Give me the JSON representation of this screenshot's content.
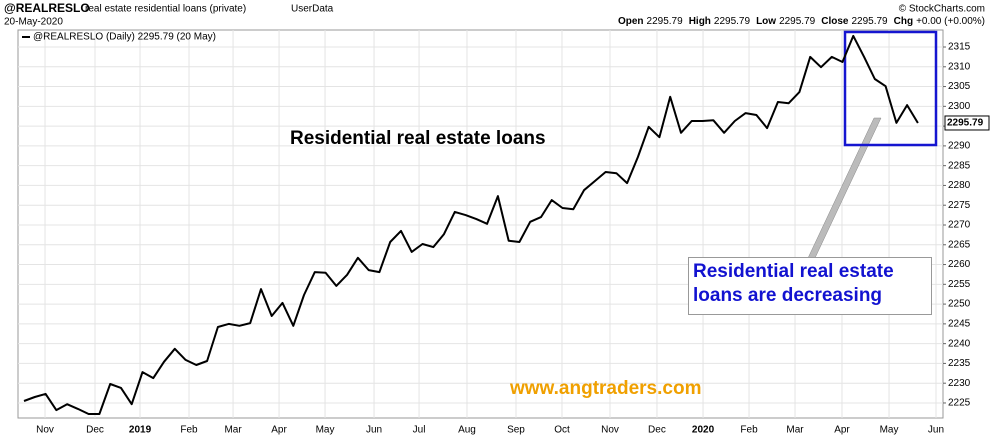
{
  "chart_data": {
    "type": "line",
    "symbol": "@REALRESLO",
    "name": "real estate residential loans (private)",
    "source": "UserData",
    "date": "20-May-2020",
    "copyright": "© StockCharts.com",
    "quote": [
      {
        "label": "Open",
        "value": 2295.79
      },
      {
        "label": "High",
        "value": 2295.79
      },
      {
        "label": "Low",
        "value": 2295.79
      },
      {
        "label": "Close",
        "value": 2295.79
      },
      {
        "label": "Chg",
        "value": "+0.00 (+0.00%)"
      }
    ],
    "annotations": [
      "Residential real estate loans",
      "Residential real estate loans are decreasing",
      "www.angtraders.com"
    ],
    "series": [
      {
        "name": "@REALRESLO (Daily) 2295.79 (20 May)",
        "color": "#000000",
        "values": [
          2225.5,
          2226.5,
          2227.3,
          2223.2,
          2224.7,
          2223.5,
          2222.2,
          2222.2,
          2229.8,
          2228.8,
          2224.7,
          2232.8,
          2231.3,
          2235.4,
          2238.7,
          2235.9,
          2234.6,
          2235.6,
          2244.2,
          2245.0,
          2244.5,
          2245.2,
          2253.8,
          2247.0,
          2250.3,
          2244.5,
          2252.3,
          2258.1,
          2257.9,
          2254.6,
          2257.4,
          2261.7,
          2258.6,
          2258.1,
          2265.7,
          2268.5,
          2263.2,
          2265.2,
          2264.4,
          2267.7,
          2273.3,
          2272.5,
          2271.5,
          2270.3,
          2277.3,
          2266.0,
          2265.7,
          2270.8,
          2272.0,
          2276.3,
          2274.3,
          2274.0,
          2278.8,
          2281.1,
          2283.4,
          2283.1,
          2280.6,
          2287.2,
          2294.8,
          2292.2,
          2302.4,
          2293.3,
          2296.3,
          2296.3,
          2296.5,
          2293.3,
          2296.3,
          2298.3,
          2297.8,
          2294.5,
          2301.1,
          2300.8,
          2303.6,
          2312.5,
          2309.9,
          2312.5,
          2311.2,
          2317.8,
          2312.5,
          2306.9,
          2305.1,
          2295.8,
          2300.3,
          2295.79
        ]
      }
    ],
    "xlim": [
      -0.56,
      85.33
    ],
    "xticks": [
      {
        "value": 1.95,
        "label": "Nov"
      },
      {
        "value": 6.59,
        "label": "Dec"
      },
      {
        "value": 10.77,
        "label": "2019"
      },
      {
        "value": 15.32,
        "label": "Feb"
      },
      {
        "value": 19.41,
        "label": "Mar"
      },
      {
        "value": 23.68,
        "label": "Apr"
      },
      {
        "value": 27.95,
        "label": "May"
      },
      {
        "value": 32.5,
        "label": "Jun"
      },
      {
        "value": 36.68,
        "label": "Jul"
      },
      {
        "value": 41.13,
        "label": "Aug"
      },
      {
        "value": 45.68,
        "label": "Sep"
      },
      {
        "value": 49.95,
        "label": "Oct"
      },
      {
        "value": 54.41,
        "label": "Nov"
      },
      {
        "value": 58.77,
        "label": "Dec"
      },
      {
        "value": 63.05,
        "label": "2020"
      },
      {
        "value": 67.32,
        "label": "Feb"
      },
      {
        "value": 71.59,
        "label": "Mar"
      },
      {
        "value": 75.95,
        "label": "Apr"
      },
      {
        "value": 80.32,
        "label": "May"
      },
      {
        "value": 84.68,
        "label": "Jun"
      }
    ],
    "ylim": [
      2221.2,
      2319.3
    ],
    "yticks": [
      2225,
      2230,
      2235,
      2240,
      2245,
      2250,
      2255,
      2260,
      2265,
      2270,
      2275,
      2280,
      2285,
      2290,
      2295,
      2300,
      2305,
      2310,
      2315
    ],
    "grid": true
  }
}
